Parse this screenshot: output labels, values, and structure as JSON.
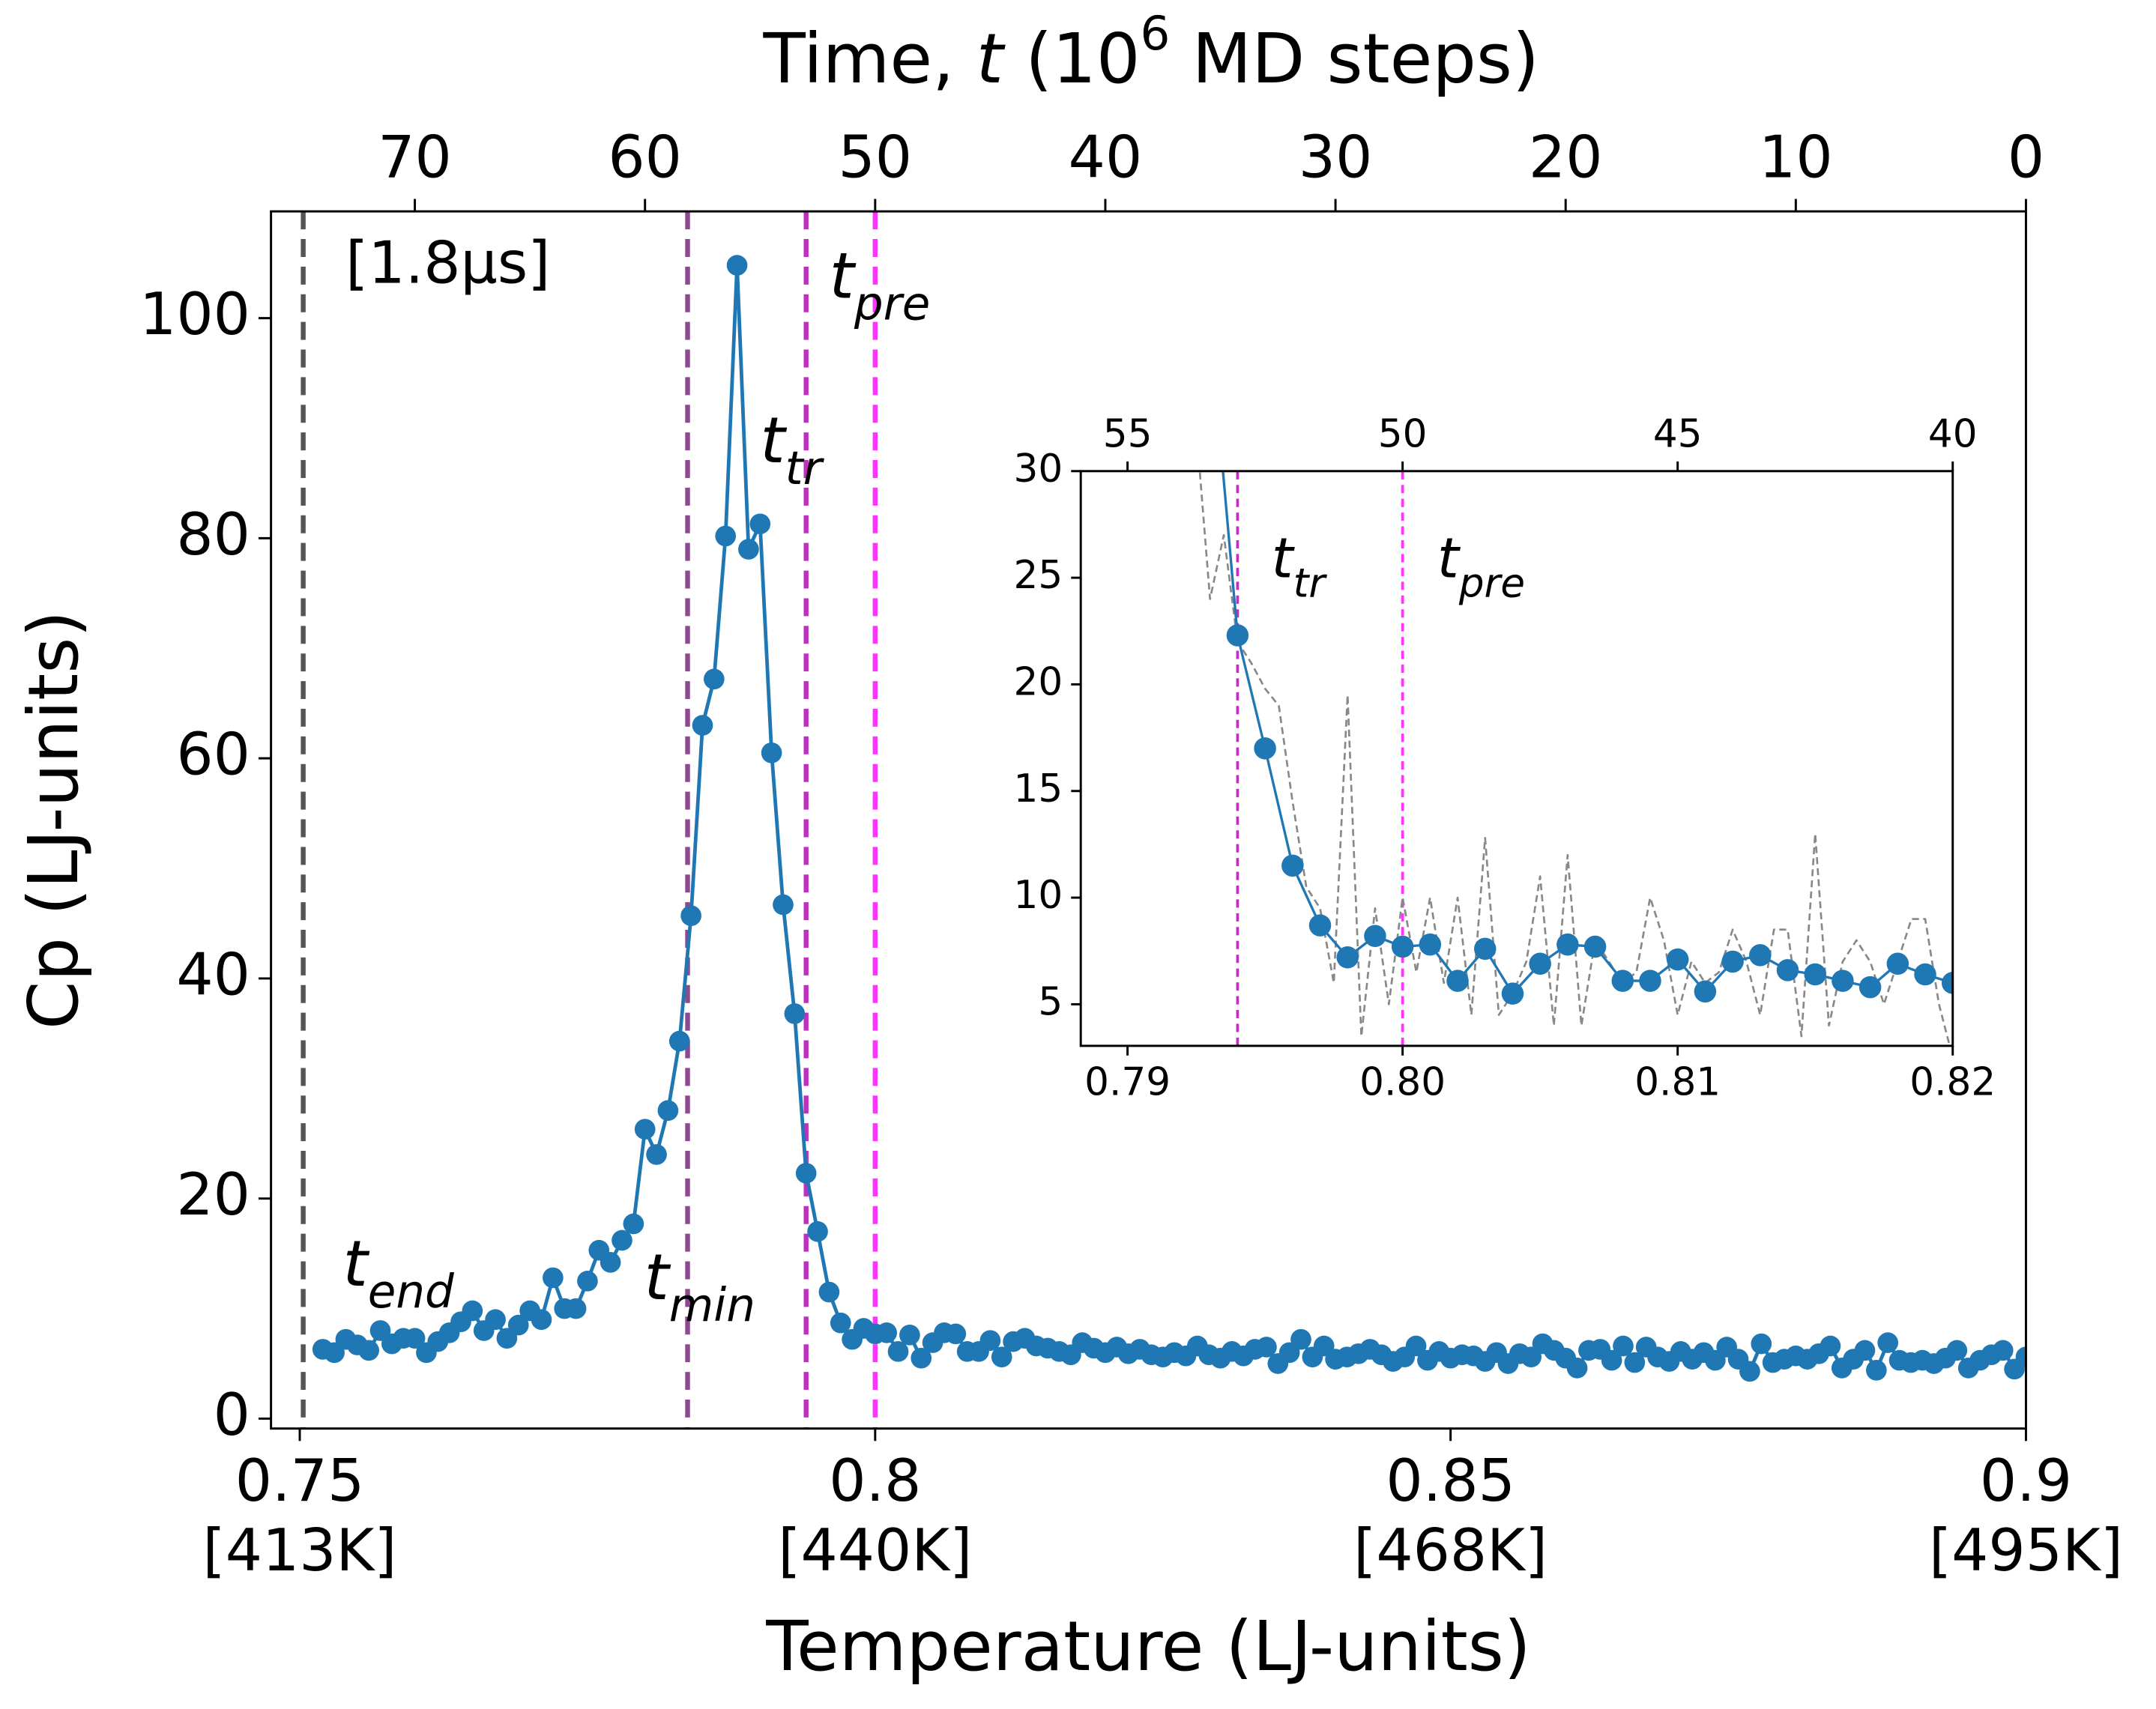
{
  "chart_data": [
    {
      "type": "line",
      "xlabel": "Temperature (LJ-units)",
      "ylabel": "Cp (LJ-units)",
      "x2label": [
        "Time, ",
        "t",
        " (10",
        "6",
        " MD steps)"
      ],
      "annotation": "[1.8μs]",
      "xlim": [
        0.7475,
        0.9
      ],
      "ylim": [
        -0.9,
        109.7
      ],
      "x2lim": [
        76.25,
        0
      ],
      "xticks": [
        0.75,
        0.8,
        0.85,
        0.9
      ],
      "xtick_sublabels": [
        "[413K]",
        "[440K]",
        "[468K]",
        "[495K]"
      ],
      "yticks": [
        0,
        20,
        40,
        60,
        80,
        100
      ],
      "x2ticks": [
        70,
        60,
        50,
        40,
        30,
        20,
        10,
        0
      ],
      "series": [
        {
          "color": "#1f77b4",
          "marker": true,
          "linestyle": "solid",
          "x": [
            0.752,
            0.753,
            0.754,
            0.755,
            0.756,
            0.757,
            0.758,
            0.759,
            0.76,
            0.761,
            0.762,
            0.763,
            0.764,
            0.765,
            0.766,
            0.767,
            0.768,
            0.769,
            0.77,
            0.771,
            0.772,
            0.773,
            0.774,
            0.775,
            0.776,
            0.777,
            0.778,
            0.779,
            0.78,
            0.781,
            0.782,
            0.783,
            0.784,
            0.785,
            0.786,
            0.787,
            0.788,
            0.789,
            0.79,
            0.791,
            0.792,
            0.793,
            0.794,
            0.795,
            0.796,
            0.797,
            0.798,
            0.799,
            0.8,
            0.801,
            0.802,
            0.803,
            0.804,
            0.805,
            0.806,
            0.807,
            0.808,
            0.809,
            0.81,
            0.811,
            0.812,
            0.813,
            0.814,
            0.815,
            0.816,
            0.817,
            0.818,
            0.819,
            0.82,
            0.821,
            0.822,
            0.823,
            0.824,
            0.825,
            0.826,
            0.827,
            0.828,
            0.829,
            0.83,
            0.831,
            0.832,
            0.833,
            0.834,
            0.835,
            0.836,
            0.837,
            0.838,
            0.839,
            0.84,
            0.841,
            0.842,
            0.843,
            0.844,
            0.845,
            0.846,
            0.847,
            0.848,
            0.849,
            0.85,
            0.851,
            0.852,
            0.853,
            0.854,
            0.855,
            0.856,
            0.857,
            0.858,
            0.859,
            0.86,
            0.861,
            0.862,
            0.863,
            0.864,
            0.865,
            0.866,
            0.867,
            0.868,
            0.869,
            0.87,
            0.871,
            0.872,
            0.873,
            0.874,
            0.875,
            0.876,
            0.877,
            0.878,
            0.879,
            0.88,
            0.881,
            0.882,
            0.883,
            0.884,
            0.885,
            0.886,
            0.887,
            0.888,
            0.889,
            0.89,
            0.891,
            0.892,
            0.893,
            0.894,
            0.895,
            0.896,
            0.897,
            0.898,
            0.899,
            0.9
          ],
          "values": [
            6.3,
            6.0,
            7.2,
            6.7,
            6.2,
            8.0,
            6.8,
            7.3,
            7.3,
            6.0,
            7.0,
            7.8,
            8.8,
            9.8,
            8.0,
            9.0,
            7.3,
            8.5,
            9.8,
            9.0,
            12.8,
            10.0,
            10.0,
            12.5,
            15.3,
            14.2,
            16.2,
            17.7,
            26.3,
            24.0,
            28.0,
            34.3,
            45.7,
            63.0,
            67.2,
            80.2,
            104.8,
            79.0,
            81.3,
            60.5,
            46.7,
            36.8,
            22.3,
            17.0,
            11.5,
            8.7,
            7.2,
            8.2,
            7.7,
            7.8,
            6.1,
            7.6,
            5.5,
            6.9,
            7.8,
            7.7,
            6.1,
            6.1,
            7.1,
            5.6,
            7.0,
            7.3,
            6.6,
            6.4,
            6.1,
            5.8,
            6.9,
            6.4,
            6.0,
            6.5,
            5.9,
            6.3,
            5.8,
            5.6,
            6.0,
            5.7,
            6.6,
            5.8,
            5.5,
            6.1,
            5.7,
            6.3,
            6.5,
            5.0,
            6.0,
            7.2,
            5.6,
            6.6,
            5.4,
            5.6,
            5.9,
            6.3,
            5.8,
            5.2,
            5.6,
            6.6,
            5.3,
            6.1,
            5.5,
            5.8,
            5.7,
            5.2,
            6.0,
            5.0,
            5.9,
            5.6,
            6.8,
            6.2,
            5.5,
            4.6,
            6.2,
            6.3,
            5.3,
            6.6,
            5.1,
            6.5,
            5.6,
            5.2,
            6.1,
            5.4,
            6.0,
            5.3,
            6.5,
            5.4,
            4.3,
            6.8,
            5.1,
            5.4,
            5.7,
            5.4,
            5.9,
            6.6,
            4.6,
            5.4,
            6.2,
            4.4,
            6.9,
            5.3,
            5.1,
            5.3,
            5.0,
            5.5,
            6.2,
            4.6,
            5.3,
            5.8,
            6.2,
            4.5,
            5.6
          ]
        }
      ],
      "vlines": [
        {
          "x": 0.7503,
          "color": "#555555",
          "label": "t",
          "subscript": "end"
        },
        {
          "x": 0.7837,
          "color": "#8e4a8e",
          "label": "t",
          "subscript": "min"
        },
        {
          "x": 0.794,
          "color": "#c030c0",
          "label": "t",
          "subscript": "tr"
        },
        {
          "x": 0.8,
          "color": "#ff33ff",
          "label": "t",
          "subscript": "pre"
        }
      ]
    },
    {
      "type": "line",
      "xlim": [
        0.7883,
        0.82
      ],
      "ylim": [
        3.05,
        30
      ],
      "x2lim": [
        55.85,
        40
      ],
      "xticks": [
        0.79,
        {
          "value": 0.8,
          "label": "0.80"
        },
        0.81,
        0.82
      ],
      "yticks": [
        5,
        10,
        15,
        20,
        25,
        30
      ],
      "x2ticks": [
        55,
        50,
        45,
        40
      ],
      "series": [
        {
          "color": "#888888",
          "marker": false,
          "linestyle": "dashed",
          "x": [
            0.7925,
            0.793,
            0.7935,
            0.794,
            0.7945,
            0.795,
            0.7955,
            0.796,
            0.7965,
            0.797,
            0.7975,
            0.798,
            0.7985,
            0.799,
            0.7995,
            0.8,
            0.8005,
            0.801,
            0.8015,
            0.802,
            0.8025,
            0.803,
            0.8035,
            0.804,
            0.8045,
            0.805,
            0.8055,
            0.806,
            0.8065,
            0.807,
            0.8075,
            0.808,
            0.8085,
            0.809,
            0.8095,
            0.81,
            0.8105,
            0.811,
            0.8115,
            0.812,
            0.8125,
            0.813,
            0.8135,
            0.814,
            0.8145,
            0.815,
            0.8155,
            0.816,
            0.8165,
            0.817,
            0.8175,
            0.818,
            0.8185,
            0.819,
            0.8195,
            0.82
          ],
          "values": [
            32,
            24,
            27,
            22,
            21,
            19.8,
            19,
            14.5,
            10.5,
            9.5,
            6,
            19.5,
            3.5,
            9.5,
            5,
            10,
            6.5,
            10,
            6,
            10,
            4.5,
            12.8,
            4.5,
            5.5,
            7,
            11,
            4,
            12,
            4,
            8,
            7,
            6,
            6.5,
            10,
            8,
            4.5,
            7,
            6,
            6.5,
            8.5,
            7,
            4.5,
            8.5,
            8.5,
            3.5,
            13,
            4,
            7,
            8,
            7,
            5,
            7,
            9,
            9,
            5,
            2.5
          ]
        },
        {
          "color": "#1f77b4",
          "marker": true,
          "linestyle": "solid",
          "x": [
            0.793,
            0.794,
            0.795,
            0.796,
            0.797,
            0.798,
            0.799,
            0.8,
            0.801,
            0.802,
            0.803,
            0.804,
            0.805,
            0.806,
            0.807,
            0.808,
            0.809,
            0.81,
            0.811,
            0.812,
            0.813,
            0.814,
            0.815,
            0.816,
            0.817,
            0.818,
            0.819,
            0.82
          ],
          "values": [
            36.8,
            22.3,
            17.0,
            11.5,
            8.7,
            7.2,
            8.2,
            7.7,
            7.8,
            6.1,
            7.6,
            5.5,
            6.9,
            7.8,
            7.7,
            6.1,
            6.1,
            7.1,
            5.6,
            7.0,
            7.3,
            6.6,
            6.4,
            6.1,
            5.8,
            6.9,
            6.4,
            6.0
          ]
        }
      ],
      "vlines": [
        {
          "x": 0.794,
          "color": "#c030c0",
          "label": "t",
          "subscript": "tr"
        },
        {
          "x": 0.8,
          "color": "#ff33ff",
          "label": "t",
          "subscript": "pre"
        }
      ]
    }
  ]
}
